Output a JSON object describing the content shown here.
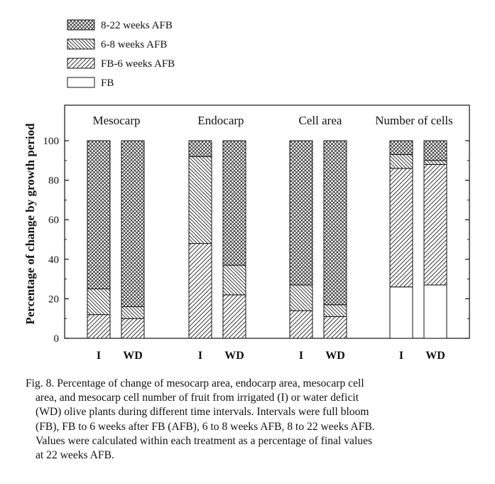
{
  "chart_data": {
    "type": "bar",
    "stacked": true,
    "ylabel": "Percentage of change by growth period",
    "ylim": [
      0,
      100
    ],
    "yticks": [
      0,
      20,
      40,
      60,
      80,
      100
    ],
    "legend": {
      "placement": "top-left",
      "entries": [
        "8-22 weeks AFB",
        "6-8 weeks AFB",
        "FB-6 weeks AFB",
        "FB"
      ]
    },
    "series_order": [
      "FB",
      "FB-6 weeks AFB",
      "6-8 weeks AFB",
      "8-22 weeks AFB"
    ],
    "groups": [
      {
        "title": "Mesocarp",
        "bars": [
          {
            "label": "I",
            "values": {
              "FB": 0,
              "FB-6 weeks AFB": 12,
              "6-8 weeks AFB": 13,
              "8-22 weeks AFB": 75
            }
          },
          {
            "label": "WD",
            "values": {
              "FB": 0,
              "FB-6 weeks AFB": 10,
              "6-8 weeks AFB": 6,
              "8-22 weeks AFB": 84
            }
          }
        ]
      },
      {
        "title": "Endocarp",
        "bars": [
          {
            "label": "I",
            "values": {
              "FB": 0,
              "FB-6 weeks AFB": 48,
              "6-8 weeks AFB": 44,
              "8-22 weeks AFB": 8
            }
          },
          {
            "label": "WD",
            "values": {
              "FB": 0,
              "FB-6 weeks AFB": 22,
              "6-8 weeks AFB": 15,
              "8-22 weeks AFB": 63
            }
          }
        ]
      },
      {
        "title": "Cell area",
        "bars": [
          {
            "label": "I",
            "values": {
              "FB": 0,
              "FB-6 weeks AFB": 14,
              "6-8 weeks AFB": 13,
              "8-22 weeks AFB": 73
            }
          },
          {
            "label": "WD",
            "values": {
              "FB": 0,
              "FB-6 weeks AFB": 11,
              "6-8 weeks AFB": 6,
              "8-22 weeks AFB": 83
            }
          }
        ]
      },
      {
        "title": "Number of cells",
        "bars": [
          {
            "label": "I",
            "values": {
              "FB": 26,
              "FB-6 weeks AFB": 60,
              "6-8 weeks AFB": 7,
              "8-22 weeks AFB": 7
            }
          },
          {
            "label": "WD",
            "values": {
              "FB": 27,
              "FB-6 weeks AFB": 61,
              "6-8 weeks AFB": 2,
              "8-22 weeks AFB": 10
            }
          }
        ]
      }
    ]
  },
  "caption": {
    "line1": "Fig. 8. Percentage of change of mesocarp area, endocarp area, mesocarp cell",
    "line2": "area, and mesocarp cell number of fruit from irrigated (I) or water deficit",
    "line3": "(WD) olive plants during different time intervals. Intervals were full bloom",
    "line4": "(FB), FB to 6 weeks after FB  (AFB), 6 to 8 weeks AFB, 8 to 22 weeks AFB.",
    "line5": "Values were calculated within each treatment as a percentage of final values",
    "line6": "at 22 weeks AFB."
  }
}
